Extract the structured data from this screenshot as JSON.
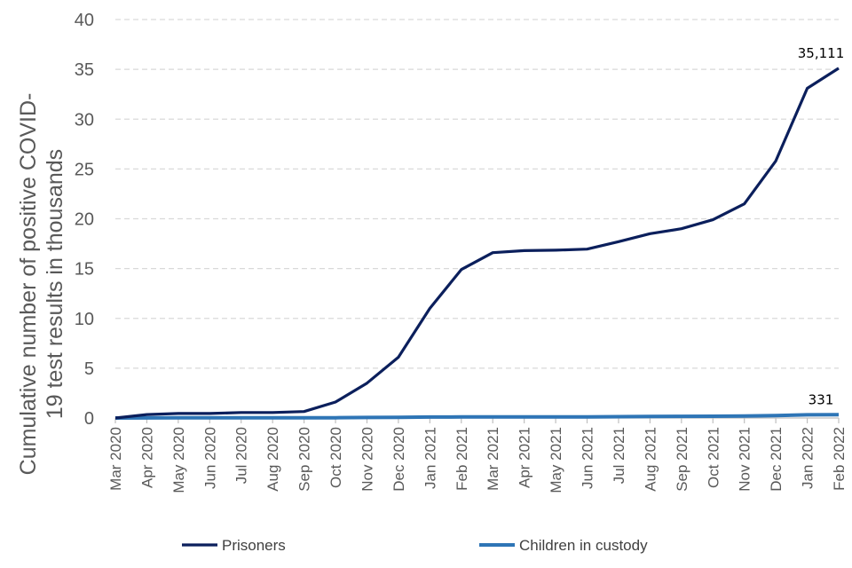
{
  "chart_data": {
    "type": "line",
    "title": "",
    "xlabel": "",
    "ylabel": "Cumulative number of positive COVID-19 test results in thousands",
    "ylabel_lines": [
      "Cumulative number of positive  COVID-",
      "19 test results in thousands"
    ],
    "ylim": [
      0,
      40
    ],
    "yticks": [
      0,
      5,
      10,
      15,
      20,
      25,
      30,
      35,
      40
    ],
    "grid": true,
    "legend_position": "bottom",
    "categories": [
      "Mar 2020",
      "Apr 2020",
      "May 2020",
      "Jun 2020",
      "Jul 2020",
      "Aug 2020",
      "Sep 2020",
      "Oct 2020",
      "Nov 2020",
      "Dec 2020",
      "Jan 2021",
      "Feb 2021",
      "Mar 2021",
      "Apr 2021",
      "May 2021",
      "Jun 2021",
      "Jul 2021",
      "Aug 2021",
      "Sep 2021",
      "Oct 2021",
      "Nov 2021",
      "Dec 2021",
      "Jan 2022",
      "Feb 2022"
    ],
    "series": [
      {
        "name": "Prisoners",
        "color": "#0b1f5c",
        "values": [
          0,
          0.35,
          0.45,
          0.45,
          0.55,
          0.55,
          0.65,
          1.6,
          3.5,
          6.1,
          11.0,
          14.9,
          16.6,
          16.8,
          16.85,
          16.95,
          17.7,
          18.5,
          19.0,
          19.9,
          21.5,
          25.8,
          33.1,
          35.111
        ],
        "end_label": "35,111"
      },
      {
        "name": "Children in custody",
        "color": "#2e75b6",
        "values": [
          0,
          0.01,
          0.02,
          0.02,
          0.02,
          0.02,
          0.02,
          0.03,
          0.05,
          0.07,
          0.1,
          0.11,
          0.12,
          0.12,
          0.12,
          0.12,
          0.13,
          0.16,
          0.17,
          0.18,
          0.2,
          0.25,
          0.32,
          0.331
        ],
        "end_label": "331"
      }
    ]
  }
}
